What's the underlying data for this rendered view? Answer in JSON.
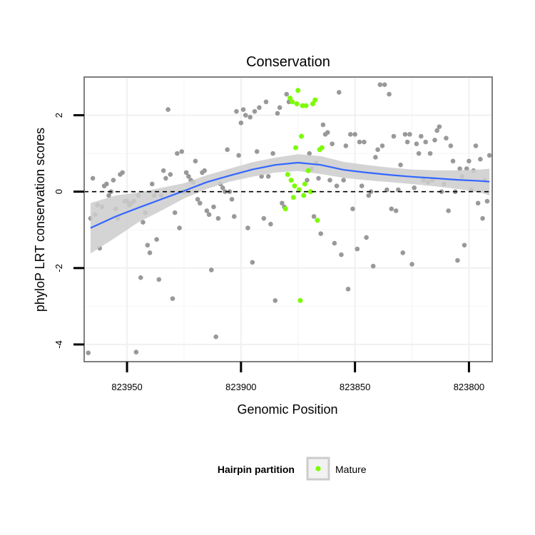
{
  "chart_data": {
    "type": "scatter",
    "title": "Conservation",
    "xlabel": "Genomic Position",
    "ylabel": "phyloP LRT conservation scores",
    "x_reversed": true,
    "xlim": [
      823968.8,
      823789.8
    ],
    "ylim": [
      -4.45,
      3.0
    ],
    "x_ticks": [
      823950,
      823900,
      823850,
      823800
    ],
    "x_tick_labels": [
      "823950",
      "823900",
      "823850",
      "823800"
    ],
    "y_ticks": [
      2,
      0,
      -2,
      -4
    ],
    "y_tick_labels": [
      "2",
      "0",
      "-2",
      "-4"
    ],
    "reference_line": {
      "y": 0,
      "style": "dashed"
    },
    "grid": true,
    "legend": {
      "title": "Hairpin partition",
      "position": "bottom",
      "entries": [
        {
          "label": "Mature",
          "color": "#7cfc00"
        }
      ]
    },
    "colors": {
      "other_points": "#999999",
      "mature_points": "#7cfc00",
      "smooth_line": "#3366ff",
      "ribbon": "#cccccc"
    },
    "series": [
      {
        "role": "other",
        "points": [
          [
            823967,
            -4.22
          ],
          [
            823966,
            -0.7
          ],
          [
            823965,
            0.35
          ],
          [
            823964,
            -0.6
          ],
          [
            823963,
            -0.35
          ],
          [
            823962,
            -1.48
          ],
          [
            823961,
            -0.4
          ],
          [
            823960,
            0.15
          ],
          [
            823959,
            0.2
          ],
          [
            823958,
            -0.1
          ],
          [
            823957,
            0.0
          ],
          [
            823956,
            0.3
          ],
          [
            823955,
            -0.45
          ],
          [
            823954,
            -0.7
          ],
          [
            823953,
            0.45
          ],
          [
            823952,
            0.5
          ],
          [
            823951,
            -0.25
          ],
          [
            823950,
            -0.25
          ],
          [
            823949,
            -0.35
          ],
          [
            823948,
            -0.3
          ],
          [
            823947,
            -0.25
          ],
          [
            823946,
            -4.2
          ],
          [
            823945,
            -0.1
          ],
          [
            823944,
            -2.25
          ],
          [
            823943,
            -0.8
          ],
          [
            823942,
            -0.55
          ],
          [
            823941,
            -1.4
          ],
          [
            823940,
            -1.6
          ],
          [
            823939,
            0.2
          ],
          [
            823938,
            -0.1
          ],
          [
            823937,
            -1.25
          ],
          [
            823936,
            -2.3
          ],
          [
            823935,
            -0.1
          ],
          [
            823934,
            0.55
          ],
          [
            823933,
            0.35
          ],
          [
            823932,
            2.15
          ],
          [
            823931,
            0.45
          ],
          [
            823930,
            -2.8
          ],
          [
            823929,
            -0.55
          ],
          [
            823928,
            1.0
          ],
          [
            823927,
            -0.95
          ],
          [
            823926,
            1.05
          ],
          [
            823925,
            0.0
          ],
          [
            823924,
            0.5
          ],
          [
            823923,
            0.4
          ],
          [
            823922,
            0.3
          ],
          [
            823921,
            0.25
          ],
          [
            823920,
            0.8
          ],
          [
            823919,
            -0.2
          ],
          [
            823918,
            -0.3
          ],
          [
            823917,
            0.5
          ],
          [
            823916,
            0.55
          ],
          [
            823915,
            -0.5
          ],
          [
            823914,
            -0.6
          ],
          [
            823913,
            -2.05
          ],
          [
            823912,
            -0.4
          ],
          [
            823911,
            -3.8
          ],
          [
            823910,
            -0.7
          ],
          [
            823909,
            0.2
          ],
          [
            823908,
            0.1
          ],
          [
            823907,
            0.0
          ],
          [
            823906,
            1.1
          ],
          [
            823905,
            0.0
          ],
          [
            823904,
            -0.2
          ],
          [
            823903,
            -0.65
          ],
          [
            823902,
            2.1
          ],
          [
            823901,
            0.95
          ],
          [
            823900,
            1.8
          ],
          [
            823899,
            2.15
          ],
          [
            823898,
            2.0
          ],
          [
            823897,
            -0.95
          ],
          [
            823896,
            1.95
          ],
          [
            823895,
            -1.85
          ],
          [
            823894,
            2.1
          ],
          [
            823893,
            1.05
          ],
          [
            823892,
            2.2
          ],
          [
            823891,
            0.4
          ],
          [
            823890,
            -0.7
          ],
          [
            823889,
            2.35
          ],
          [
            823888,
            0.4
          ],
          [
            823887,
            -0.85
          ],
          [
            823886,
            1.0
          ],
          [
            823885,
            -2.85
          ],
          [
            823884,
            2.05
          ],
          [
            823883,
            2.2
          ],
          [
            823882,
            -0.3
          ],
          [
            823881,
            -0.4
          ],
          [
            823880,
            2.55
          ],
          [
            823879,
            2.35
          ],
          [
            823871,
            0.3
          ],
          [
            823870,
            1.0
          ],
          [
            823869,
            0.6
          ],
          [
            823868,
            -0.65
          ],
          [
            823867,
            0.75
          ],
          [
            823866,
            0.35
          ],
          [
            823865,
            -1.1
          ],
          [
            823864,
            1.75
          ],
          [
            823863,
            1.5
          ],
          [
            823862,
            1.55
          ],
          [
            823861,
            0.3
          ],
          [
            823860,
            1.25
          ],
          [
            823859,
            -1.35
          ],
          [
            823858,
            0.15
          ],
          [
            823857,
            2.6
          ],
          [
            823856,
            -1.65
          ],
          [
            823855,
            0.3
          ],
          [
            823854,
            1.2
          ],
          [
            823853,
            -2.55
          ],
          [
            823852,
            1.5
          ],
          [
            823851,
            -0.45
          ],
          [
            823850,
            1.5
          ],
          [
            823849,
            -1.5
          ],
          [
            823848,
            1.3
          ],
          [
            823847,
            0.15
          ],
          [
            823846,
            1.3
          ],
          [
            823845,
            -1.2
          ],
          [
            823844,
            -0.1
          ],
          [
            823843,
            0.0
          ],
          [
            823842,
            -1.95
          ],
          [
            823841,
            0.9
          ],
          [
            823840,
            1.1
          ],
          [
            823839,
            2.8
          ],
          [
            823838,
            1.2
          ],
          [
            823837,
            2.8
          ],
          [
            823836,
            0.05
          ],
          [
            823835,
            2.55
          ],
          [
            823834,
            -0.45
          ],
          [
            823833,
            1.45
          ],
          [
            823832,
            -0.5
          ],
          [
            823831,
            0.05
          ],
          [
            823830,
            0.7
          ],
          [
            823829,
            -1.6
          ],
          [
            823828,
            1.5
          ],
          [
            823827,
            1.3
          ],
          [
            823826,
            1.5
          ],
          [
            823825,
            -1.9
          ],
          [
            823824,
            0.1
          ],
          [
            823823,
            1.25
          ],
          [
            823822,
            1.0
          ],
          [
            823821,
            1.45
          ],
          [
            823820,
            0.3
          ],
          [
            823819,
            1.3
          ],
          [
            823818,
            0.25
          ],
          [
            823817,
            1.0
          ],
          [
            823816,
            0.3
          ],
          [
            823815,
            1.35
          ],
          [
            823814,
            1.6
          ],
          [
            823813,
            1.7
          ],
          [
            823812,
            0.0
          ],
          [
            823811,
            0.2
          ],
          [
            823810,
            1.4
          ],
          [
            823809,
            -0.5
          ],
          [
            823808,
            1.2
          ],
          [
            823807,
            0.8
          ],
          [
            823806,
            0.0
          ],
          [
            823805,
            -1.8
          ],
          [
            823804,
            0.6
          ],
          [
            823803,
            0.4
          ],
          [
            823802,
            -1.4
          ],
          [
            823801,
            0.6
          ],
          [
            823800,
            0.8
          ],
          [
            823799,
            0.05
          ],
          [
            823798,
            0.55
          ],
          [
            823797,
            1.2
          ],
          [
            823796,
            -0.3
          ],
          [
            823795,
            0.85
          ],
          [
            823794,
            -0.7
          ],
          [
            823793,
            0.3
          ],
          [
            823792,
            -0.25
          ],
          [
            823791,
            0.95
          ]
        ]
      },
      {
        "role": "mature",
        "name": "Mature",
        "points": [
          [
            823878,
            0.3
          ],
          [
            823877,
            -0.15
          ],
          [
            823876,
            1.15
          ],
          [
            823875,
            2.65
          ],
          [
            823874,
            -2.85
          ],
          [
            823873,
            2.25
          ],
          [
            823872,
            0.2
          ],
          [
            823880.5,
            -0.45
          ],
          [
            823879.5,
            0.45
          ],
          [
            823878.5,
            2.45
          ],
          [
            823877.5,
            2.35
          ],
          [
            823876.5,
            0.15
          ],
          [
            823875.5,
            2.3
          ],
          [
            823874.5,
            0.05
          ],
          [
            823873.5,
            1.45
          ],
          [
            823872.5,
            -0.1
          ],
          [
            823871.5,
            2.25
          ],
          [
            823870.5,
            0.55
          ],
          [
            823869.5,
            0.0
          ],
          [
            823868.5,
            2.3
          ],
          [
            823867.5,
            2.4
          ],
          [
            823866.5,
            -0.75
          ],
          [
            823865.5,
            1.1
          ],
          [
            823864.5,
            1.15
          ]
        ]
      }
    ],
    "smooth": {
      "x": [
        823966,
        823955,
        823945,
        823935,
        823925,
        823915,
        823905,
        823895,
        823885,
        823875,
        823865,
        823855,
        823845,
        823835,
        823825,
        823815,
        823805,
        823795,
        823791
      ],
      "y": [
        -0.95,
        -0.65,
        -0.42,
        -0.2,
        0.02,
        0.25,
        0.42,
        0.58,
        0.7,
        0.76,
        0.7,
        0.57,
        0.5,
        0.44,
        0.39,
        0.35,
        0.31,
        0.28,
        0.26
      ],
      "lower": [
        -1.62,
        -1.2,
        -0.8,
        -0.5,
        -0.18,
        0.07,
        0.26,
        0.39,
        0.5,
        0.54,
        0.46,
        0.36,
        0.3,
        0.25,
        0.2,
        0.14,
        0.07,
        -0.02,
        -0.1
      ],
      "upper": [
        -0.3,
        -0.1,
        -0.02,
        0.1,
        0.22,
        0.43,
        0.6,
        0.77,
        0.89,
        0.98,
        0.93,
        0.78,
        0.7,
        0.63,
        0.58,
        0.56,
        0.56,
        0.58,
        0.6
      ]
    }
  }
}
